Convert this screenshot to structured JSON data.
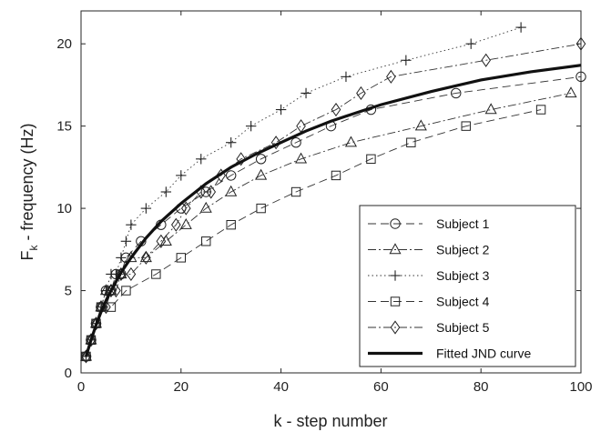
{
  "chart_data": {
    "type": "line",
    "xlabel": "k - step number",
    "ylabel_main": "F",
    "ylabel_sub": "k",
    "ylabel_rest": " - frequency (Hz)",
    "xlim": [
      0,
      100
    ],
    "ylim": [
      0,
      22
    ],
    "xticks": [
      0,
      20,
      40,
      60,
      80,
      100
    ],
    "yticks": [
      0,
      5,
      10,
      15,
      20
    ],
    "grid": false,
    "legend_position": "bottom-right",
    "series": [
      {
        "name": "Subject 1",
        "marker": "circle",
        "dash": "dashed",
        "x": [
          1,
          2,
          3,
          4,
          5,
          6,
          7,
          8,
          9,
          12,
          16,
          20,
          25,
          30,
          36,
          43,
          50,
          58,
          75,
          100
        ],
        "y": [
          1,
          2,
          3,
          4,
          5,
          5,
          6,
          6,
          7,
          8,
          9,
          10,
          11,
          12,
          13,
          14,
          15,
          16,
          17,
          18
        ]
      },
      {
        "name": "Subject 2",
        "marker": "triangle",
        "dash": "dashdot",
        "x": [
          1,
          2,
          3,
          4,
          5,
          6,
          8,
          10,
          13,
          17,
          21,
          25,
          30,
          36,
          44,
          54,
          68,
          82,
          98
        ],
        "y": [
          1,
          2,
          3,
          4,
          5,
          5,
          6,
          7,
          7,
          8,
          9,
          10,
          11,
          12,
          13,
          14,
          15,
          16,
          17
        ]
      },
      {
        "name": "Subject 3",
        "marker": "plus",
        "dash": "dotted",
        "x": [
          1,
          2,
          3,
          4,
          5,
          6,
          7,
          8,
          9,
          10,
          13,
          17,
          20,
          24,
          30,
          34,
          40,
          45,
          53,
          65,
          78,
          88
        ],
        "y": [
          1,
          2,
          3,
          4,
          5,
          6,
          6,
          7,
          8,
          9,
          10,
          11,
          12,
          13,
          14,
          15,
          16,
          17,
          18,
          19,
          20,
          21
        ]
      },
      {
        "name": "Subject 4",
        "marker": "square",
        "dash": "dashed",
        "x": [
          1,
          2,
          3,
          4,
          6,
          9,
          15,
          20,
          25,
          30,
          36,
          43,
          51,
          58,
          66,
          77,
          92
        ],
        "y": [
          1,
          2,
          3,
          4,
          4,
          5,
          6,
          7,
          8,
          9,
          10,
          11,
          12,
          13,
          14,
          15,
          16
        ]
      },
      {
        "name": "Subject 5",
        "marker": "diamond",
        "dash": "dashdot",
        "x": [
          1,
          2,
          3,
          4,
          5,
          6,
          7,
          8,
          10,
          13,
          16,
          19,
          21,
          24,
          26,
          28,
          32,
          39,
          44,
          51,
          56,
          62,
          81,
          100
        ],
        "y": [
          1,
          2,
          3,
          4,
          4,
          5,
          5,
          6,
          6,
          7,
          8,
          9,
          10,
          11,
          11,
          12,
          13,
          14,
          15,
          16,
          17,
          18,
          19,
          20
        ]
      },
      {
        "name": "Fitted JND curve",
        "marker": "none",
        "dash": "solid",
        "x": [
          1,
          2,
          3,
          4,
          5,
          6,
          8,
          10,
          13,
          16,
          20,
          25,
          30,
          35,
          40,
          45,
          50,
          55,
          60,
          70,
          80,
          90,
          100
        ],
        "y": [
          1.0,
          2.0,
          2.9,
          3.7,
          4.4,
          5.0,
          6.1,
          7.0,
          8.2,
          9.2,
          10.3,
          11.5,
          12.5,
          13.3,
          14.0,
          14.7,
          15.3,
          15.8,
          16.3,
          17.1,
          17.8,
          18.3,
          18.7
        ]
      }
    ]
  }
}
